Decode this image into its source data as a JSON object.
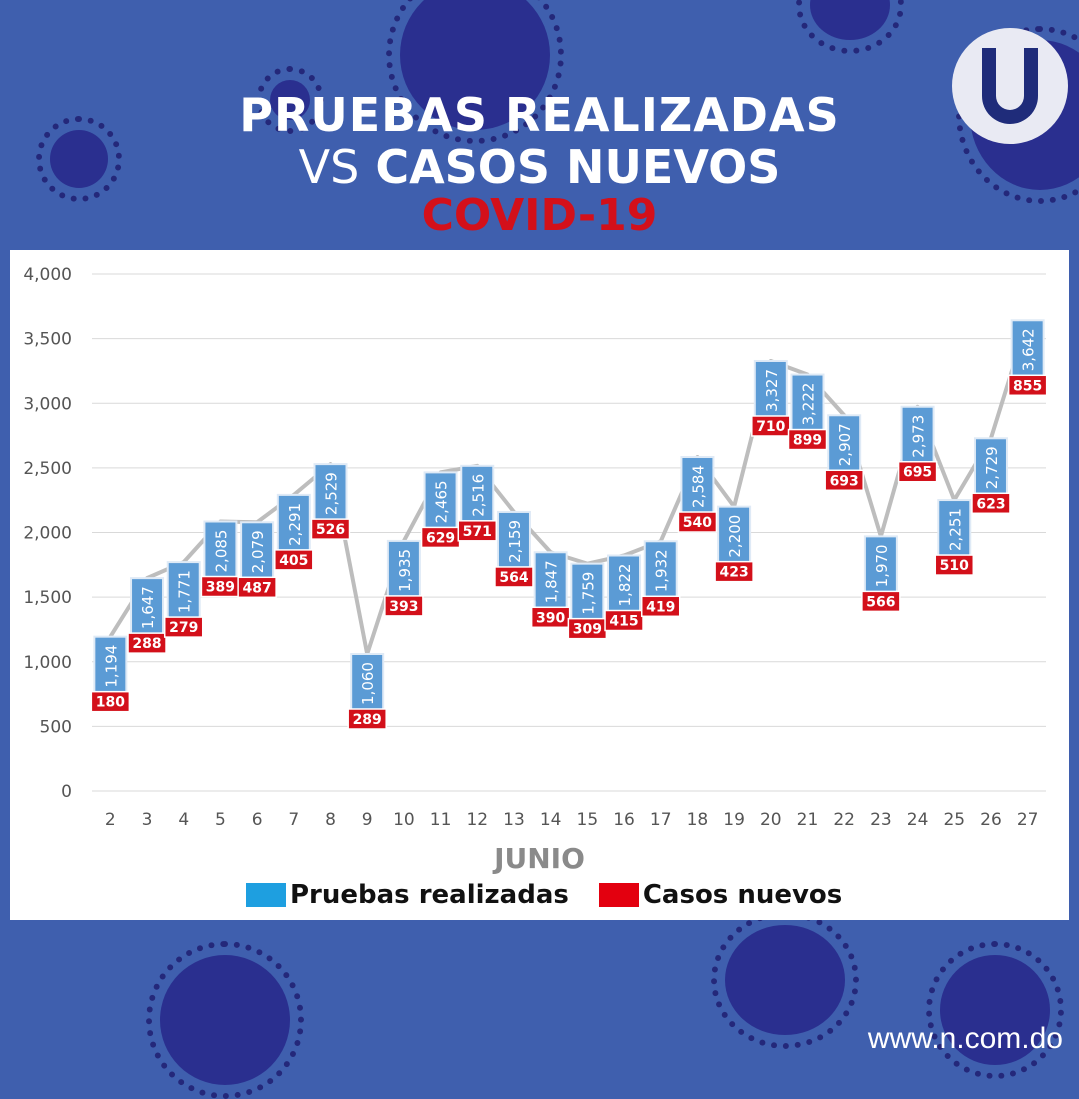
{
  "title": {
    "line1": "PRUEBAS REALIZADAS",
    "line2_vs": "VS",
    "line2_rest": "CASOS NUEVOS",
    "line3": "COVID-19"
  },
  "legend": {
    "series1": "Pruebas realizadas",
    "series2": "Casos nuevos"
  },
  "footer_url": "www.n.com.do",
  "colors": {
    "background": "#3f5fae",
    "tests": "#5b9bd5",
    "cases": "#d3101a",
    "title_red": "#d3101a",
    "line": "#bdbdbd"
  },
  "chart_data": {
    "type": "line",
    "xlabel": "JUNIO",
    "categories": [
      "2",
      "3",
      "4",
      "5",
      "6",
      "7",
      "8",
      "9",
      "10",
      "11",
      "12",
      "13",
      "14",
      "15",
      "16",
      "17",
      "18",
      "19",
      "20",
      "21",
      "22",
      "23",
      "24",
      "25",
      "26",
      "27"
    ],
    "ylim": [
      0,
      4000
    ],
    "yticks": [
      "0",
      "500",
      "1,000",
      "1,500",
      "2,000",
      "2,500",
      "3,000",
      "3,500",
      "4,000"
    ],
    "series": [
      {
        "name": "Pruebas realizadas",
        "values": [
          1194,
          1647,
          1771,
          2085,
          2079,
          2291,
          2529,
          1060,
          1935,
          2465,
          2516,
          2159,
          1847,
          1759,
          1822,
          1932,
          2584,
          2200,
          3327,
          3222,
          2907,
          1970,
          2973,
          2251,
          2729,
          3642
        ],
        "labels": [
          "1,194",
          "1,647",
          "1,771",
          "2,085",
          "2,079",
          "2,291",
          "2,529",
          "1,060",
          "1,935",
          "2,465",
          "2,516",
          "2,159",
          "1,847",
          "1,759",
          "1,822",
          "1,932",
          "2,584",
          "2,200",
          "3,327",
          "3,222",
          "2,907",
          "1,970",
          "2,973",
          "2,251",
          "2,729",
          "3,642"
        ]
      },
      {
        "name": "Casos nuevos",
        "values": [
          180,
          288,
          279,
          389,
          487,
          405,
          526,
          289,
          393,
          629,
          571,
          564,
          390,
          309,
          415,
          419,
          540,
          423,
          710,
          899,
          693,
          566,
          695,
          510,
          623,
          855
        ],
        "labels": [
          "180",
          "288",
          "279",
          "389",
          "487",
          "405",
          "526",
          "289",
          "393",
          "629",
          "571",
          "564",
          "390",
          "309",
          "415",
          "419",
          "540",
          "423",
          "710",
          "899",
          "693",
          "566",
          "695",
          "510",
          "623",
          "855"
        ]
      }
    ],
    "grid": true,
    "legend_position": "bottom"
  }
}
